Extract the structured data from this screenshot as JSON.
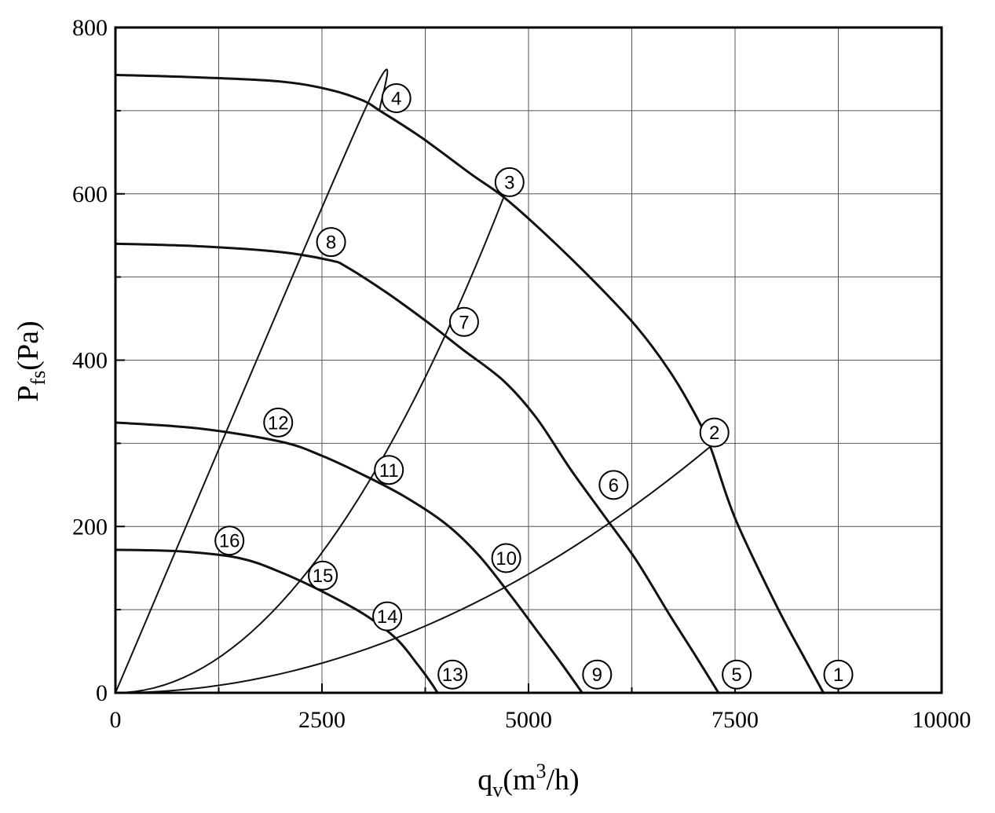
{
  "chart_data": {
    "type": "line",
    "xlabel": {
      "base": "q",
      "sub": "v",
      "rest": "(m",
      "sup": "3",
      "end": "/h)"
    },
    "ylabel": {
      "base": "P",
      "sub": "fs",
      "rest": "(Pa)"
    },
    "xlim": [
      0,
      10000
    ],
    "ylim": [
      0,
      800
    ],
    "x_ticks": [
      0,
      2500,
      5000,
      7500,
      10000
    ],
    "y_ticks": [
      0,
      200,
      400,
      600,
      800
    ],
    "grid": true,
    "series": [
      {
        "kind": "fan-curve",
        "points": [
          [
            0,
            743
          ],
          [
            1000,
            740
          ],
          [
            2000,
            735
          ],
          [
            2600,
            725
          ],
          [
            3000,
            712
          ],
          [
            3200,
            700
          ],
          [
            3700,
            668
          ],
          [
            4300,
            624
          ],
          [
            4700,
            596
          ],
          [
            5200,
            552
          ],
          [
            5800,
            494
          ],
          [
            6300,
            441
          ],
          [
            6700,
            388
          ],
          [
            7000,
            338
          ],
          [
            7200,
            296
          ],
          [
            7500,
            210
          ],
          [
            8000,
            105
          ],
          [
            8350,
            40
          ],
          [
            8570,
            0
          ]
        ]
      },
      {
        "kind": "fan-curve",
        "points": [
          [
            0,
            540
          ],
          [
            1000,
            537
          ],
          [
            2000,
            530
          ],
          [
            2600,
            520
          ],
          [
            2800,
            512
          ],
          [
            3300,
            480
          ],
          [
            3800,
            444
          ],
          [
            4200,
            413
          ],
          [
            4700,
            375
          ],
          [
            5100,
            330
          ],
          [
            5500,
            270
          ],
          [
            5900,
            215
          ],
          [
            6300,
            160
          ],
          [
            6700,
            95
          ],
          [
            7000,
            48
          ],
          [
            7300,
            0
          ]
        ]
      },
      {
        "kind": "fan-curve",
        "points": [
          [
            0,
            325
          ],
          [
            1000,
            318
          ],
          [
            2000,
            302
          ],
          [
            2500,
            285
          ],
          [
            3000,
            262
          ],
          [
            3500,
            236
          ],
          [
            4000,
            203
          ],
          [
            4400,
            165
          ],
          [
            4800,
            115
          ],
          [
            5100,
            75
          ],
          [
            5400,
            35
          ],
          [
            5650,
            0
          ]
        ]
      },
      {
        "kind": "fan-curve",
        "points": [
          [
            0,
            172
          ],
          [
            800,
            170
          ],
          [
            1500,
            162
          ],
          [
            2000,
            145
          ],
          [
            2500,
            122
          ],
          [
            3000,
            95
          ],
          [
            3400,
            65
          ],
          [
            3650,
            35
          ],
          [
            3800,
            15
          ],
          [
            3900,
            0
          ]
        ]
      },
      {
        "kind": "system-curve",
        "points": [
          [
            0,
            0
          ],
          [
            3000,
            697
          ],
          [
            3200,
            700
          ]
        ]
      },
      {
        "kind": "system-curve",
        "points": [
          [
            0,
            0
          ],
          [
            4700,
            596
          ]
        ]
      },
      {
        "kind": "system-curve",
        "points": [
          [
            0,
            0
          ],
          [
            7200,
            296
          ]
        ]
      }
    ],
    "markers": [
      {
        "label": "1",
        "x": 8750,
        "y": 22
      },
      {
        "label": "2",
        "x": 7250,
        "y": 313
      },
      {
        "label": "3",
        "x": 4770,
        "y": 614
      },
      {
        "label": "4",
        "x": 3400,
        "y": 715
      },
      {
        "label": "5",
        "x": 7520,
        "y": 22
      },
      {
        "label": "6",
        "x": 6030,
        "y": 250
      },
      {
        "label": "7",
        "x": 4220,
        "y": 446
      },
      {
        "label": "8",
        "x": 2610,
        "y": 542
      },
      {
        "label": "9",
        "x": 5830,
        "y": 22
      },
      {
        "label": "10",
        "x": 4730,
        "y": 162
      },
      {
        "label": "11",
        "x": 3310,
        "y": 268
      },
      {
        "label": "12",
        "x": 1970,
        "y": 325
      },
      {
        "label": "13",
        "x": 4080,
        "y": 22
      },
      {
        "label": "14",
        "x": 3290,
        "y": 92
      },
      {
        "label": "15",
        "x": 2510,
        "y": 141
      },
      {
        "label": "16",
        "x": 1380,
        "y": 183
      }
    ]
  }
}
